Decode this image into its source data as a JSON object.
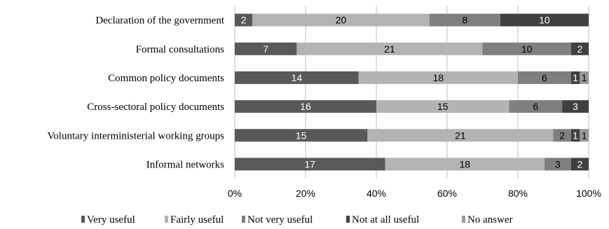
{
  "chart_data": {
    "type": "bar",
    "orientation": "horizontal",
    "stacked": "percent",
    "categories": [
      "Declaration of the government",
      "Formal consultations",
      "Common policy documents",
      "Cross-sectoral policy documents",
      "Voluntary interministerial working groups",
      "Informal networks"
    ],
    "series": [
      {
        "name": "Very useful",
        "color": "#595959",
        "label_color": "#ffffff",
        "values": [
          2,
          7,
          14,
          16,
          15,
          17
        ]
      },
      {
        "name": "Fairly useful",
        "color": "#b3b3b3",
        "label_color": "#000000",
        "values": [
          20,
          21,
          18,
          15,
          21,
          18
        ]
      },
      {
        "name": "Not very useful",
        "color": "#7f7f7f",
        "label_color": "#000000",
        "values": [
          8,
          10,
          6,
          6,
          2,
          3
        ]
      },
      {
        "name": "Not at all useful",
        "color": "#404040",
        "label_color": "#ffffff",
        "values": [
          10,
          2,
          1,
          3,
          1,
          2
        ]
      },
      {
        "name": "No answer",
        "color": "#999999",
        "label_color": "#000000",
        "values": [
          0,
          0,
          1,
          0,
          1,
          0
        ]
      }
    ],
    "xlim": [
      0,
      100
    ],
    "x_ticks": [
      "0%",
      "20%",
      "40%",
      "60%",
      "80%",
      "100%"
    ],
    "grid": "vertical",
    "legend_position": "bottom"
  }
}
